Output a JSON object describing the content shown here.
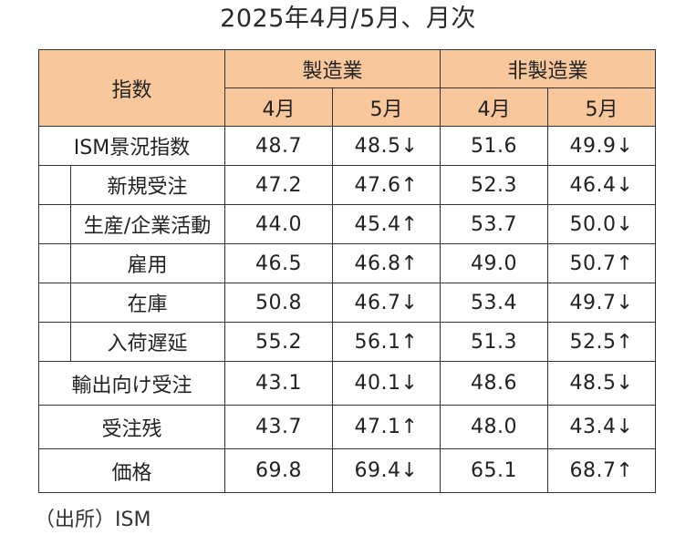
{
  "title": "2025年4月/5月、月次",
  "table": {
    "header": {
      "index_label": "指数",
      "groups": [
        "製造業",
        "非製造業"
      ],
      "months": [
        "4月",
        "5月",
        "4月",
        "5月"
      ]
    },
    "rows": [
      {
        "label": "ISM景況指数",
        "level": "main",
        "values": [
          "48.7",
          "48.5↓",
          "51.6",
          "49.9↓"
        ]
      },
      {
        "label": "新規受注",
        "level": "sub",
        "values": [
          "47.2",
          "47.6↑",
          "52.3",
          "46.4↓"
        ]
      },
      {
        "label": "生産/企業活動",
        "level": "sub",
        "values": [
          "44.0",
          "45.4↑",
          "53.7",
          "50.0↓"
        ]
      },
      {
        "label": "雇用",
        "level": "sub",
        "values": [
          "46.5",
          "46.8↑",
          "49.0",
          "50.7↑"
        ]
      },
      {
        "label": "在庫",
        "level": "sub",
        "values": [
          "50.8",
          "46.7↓",
          "53.4",
          "49.7↓"
        ]
      },
      {
        "label": "入荷遅延",
        "level": "sub",
        "values": [
          "55.2",
          "56.1↑",
          "51.3",
          "52.5↑"
        ]
      },
      {
        "label": "輸出向け受注",
        "level": "main",
        "values": [
          "43.1",
          "40.1↓",
          "48.6",
          "48.5↓"
        ]
      },
      {
        "label": "受注残",
        "level": "main",
        "values": [
          "43.7",
          "47.1↑",
          "48.0",
          "43.4↓"
        ]
      },
      {
        "label": "価格",
        "level": "main",
        "values": [
          "69.8",
          "69.4↓",
          "65.1",
          "68.7↑"
        ]
      }
    ]
  },
  "source": "（出所）ISM",
  "colors": {
    "header_bg": "#f8c79b",
    "border": "#333333"
  }
}
